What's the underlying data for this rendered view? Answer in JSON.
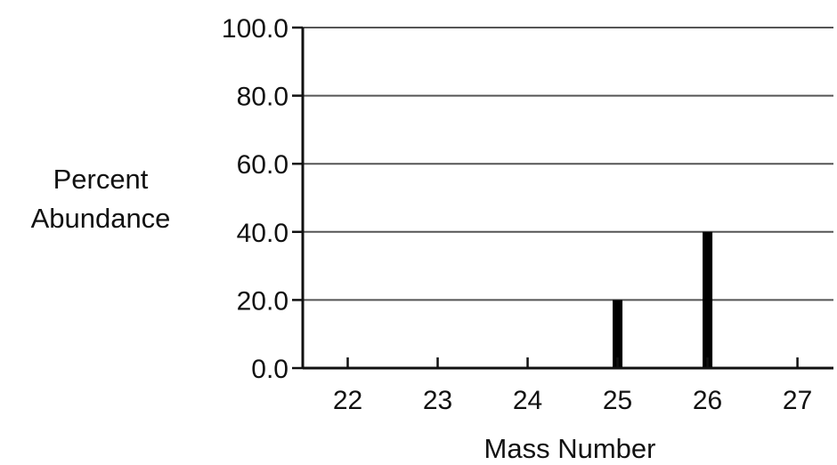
{
  "chart_data": {
    "type": "bar",
    "title": "",
    "xlabel": "Mass Number",
    "ylabel_lines": [
      "Percent",
      "Abundance"
    ],
    "categories": [
      "22",
      "23",
      "24",
      "25",
      "26",
      "27"
    ],
    "x": [
      22,
      23,
      24,
      25,
      26,
      27
    ],
    "values": [
      0,
      0,
      0,
      20.0,
      40.0,
      0
    ],
    "ylim": [
      0,
      100
    ],
    "xlim": [
      21.5,
      27.4
    ],
    "y_ticks": [
      "0.0",
      "20.0",
      "40.0",
      "60.0",
      "80.0",
      "100.0"
    ],
    "y_tick_values": [
      0,
      20,
      40,
      60,
      80,
      100
    ],
    "grid": true,
    "bar_color": "#000000",
    "grid_color": "#555555"
  }
}
